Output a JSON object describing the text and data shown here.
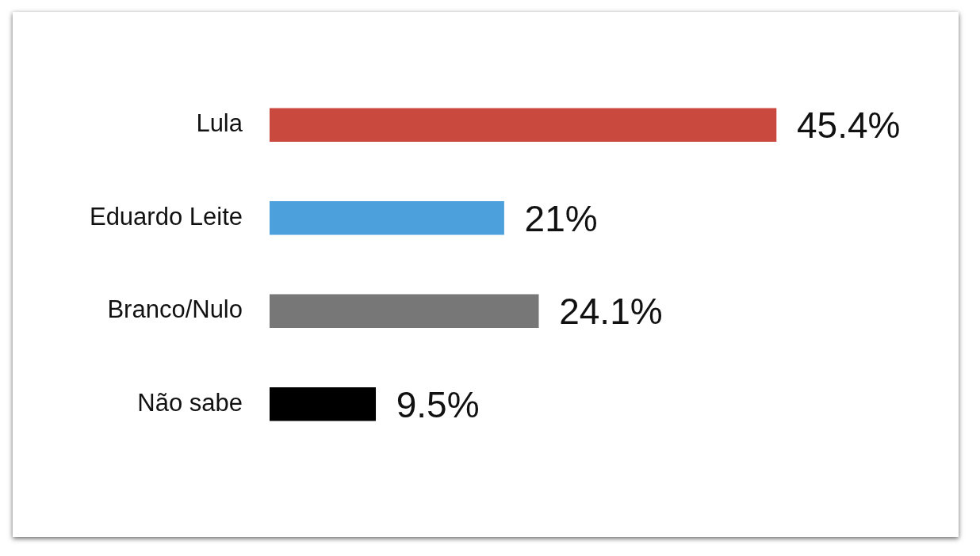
{
  "chart_data": {
    "type": "bar",
    "orientation": "horizontal",
    "categories": [
      "Lula",
      "Eduardo Leite",
      "Branco/Nulo",
      "Não sabe"
    ],
    "values": [
      45.4,
      21,
      24.1,
      9.5
    ],
    "colors": [
      "#c9493f",
      "#4ca0dc",
      "#777777",
      "#000000"
    ],
    "value_labels": [
      "45.4%",
      "21%",
      "24.1%",
      "9.5%"
    ],
    "legend": false,
    "tick_labels": "y"
  }
}
